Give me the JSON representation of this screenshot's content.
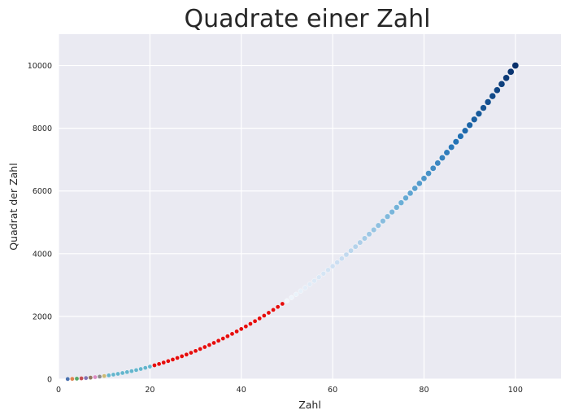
{
  "chart_data": {
    "type": "scatter",
    "title": "Quadrate einer Zahl",
    "xlabel": "Zahl",
    "ylabel": "Quadrat der Zahl",
    "xlim": [
      0,
      110
    ],
    "ylim": [
      0,
      11000
    ],
    "xticks": [
      "0",
      "20",
      "40",
      "60",
      "80",
      "100"
    ],
    "yticks": [
      "0",
      "2000",
      "4000",
      "6000",
      "8000",
      "10000"
    ],
    "grid": true,
    "background": "#eaeaf2",
    "x_start": 2,
    "x_end": 100,
    "y_formula": "x^2",
    "color_segments": [
      {
        "from": 2,
        "to": 10,
        "colors": [
          "#4c72b0",
          "#dd8452",
          "#55a868",
          "#c44e52",
          "#8172b3",
          "#937860",
          "#da8bc3",
          "#8c8c8c",
          "#ccb974"
        ]
      },
      {
        "from": 11,
        "to": 20,
        "color": "#64b5cd"
      },
      {
        "from": 21,
        "to": 49,
        "color": "#e50d0d"
      },
      {
        "from": 50,
        "to": 100,
        "gradient": [
          "#f0f6fc",
          "#c6dbef",
          "#6baed6",
          "#2171b5",
          "#08306b"
        ]
      }
    ]
  }
}
